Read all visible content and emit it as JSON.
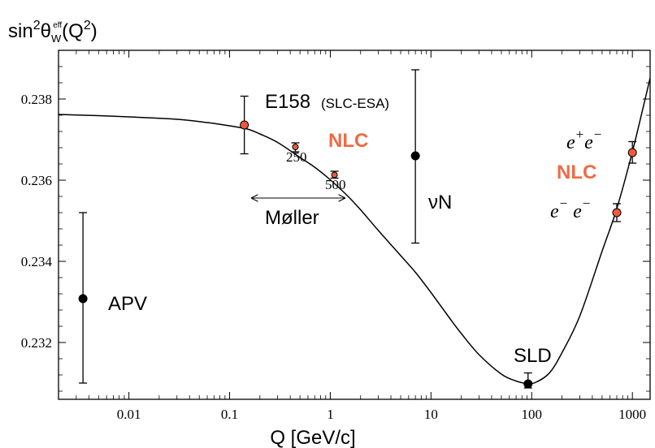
{
  "chart_data": {
    "type": "scatter",
    "title": "",
    "xlabel": "Q [GeV/c]",
    "ylabel": {
      "base": "sin",
      "sup1": "2",
      "theta": "θ",
      "sub": "W",
      "supeff": "eff",
      "rest": "(Q",
      "sup2": "2",
      "close": ")"
    },
    "x_scale": "log",
    "xlim": [
      0.002,
      1500
    ],
    "ylim": [
      0.2306,
      0.2392
    ],
    "x_ticks": [
      {
        "v": 0.01,
        "label": "0.01"
      },
      {
        "v": 0.1,
        "label": "0.1"
      },
      {
        "v": 1,
        "label": "1"
      },
      {
        "v": 10,
        "label": "10"
      },
      {
        "v": 100,
        "label": "100"
      },
      {
        "v": 1000,
        "label": "1000"
      }
    ],
    "y_ticks": [
      {
        "v": 0.232,
        "label": "0.232"
      },
      {
        "v": 0.234,
        "label": "0.234"
      },
      {
        "v": 0.236,
        "label": "0.236"
      },
      {
        "v": 0.238,
        "label": "0.238"
      }
    ],
    "curve": {
      "x": [
        0.002,
        0.005,
        0.01,
        0.03,
        0.06,
        0.1,
        0.15,
        0.2,
        0.3,
        0.5,
        0.7,
        1,
        1.5,
        2,
        3,
        5,
        7,
        10,
        15,
        20,
        30,
        50,
        70,
        90,
        110,
        150,
        200,
        300,
        500,
        700,
        1000,
        1500
      ],
      "y": [
        0.23762,
        0.23759,
        0.23756,
        0.2375,
        0.23742,
        0.23734,
        0.23726,
        0.23714,
        0.23693,
        0.23656,
        0.23632,
        0.23601,
        0.2356,
        0.23527,
        0.23476,
        0.23414,
        0.23373,
        0.23323,
        0.23263,
        0.23222,
        0.2317,
        0.23122,
        0.23105,
        0.23099,
        0.23102,
        0.23125,
        0.23175,
        0.23265,
        0.23425,
        0.2353,
        0.2367,
        0.23852
      ]
    },
    "points": [
      {
        "id": "apv",
        "x": 0.0035,
        "y": 0.23308,
        "yerr_low": 0.231,
        "yerr_high": 0.2352,
        "color": "#000000"
      },
      {
        "id": "e158",
        "x": 0.14,
        "y": 0.23736,
        "yerr_low": 0.23665,
        "yerr_high": 0.23807,
        "color": "#ee5a3a"
      },
      {
        "id": "moller250",
        "x": 0.45,
        "y": 0.23682,
        "yerr_low": 0.2367,
        "yerr_high": 0.23692,
        "color": "#ee5a3a"
      },
      {
        "id": "moller500",
        "x": 1.1,
        "y": 0.23613,
        "yerr_low": 0.23605,
        "yerr_high": 0.23622,
        "color": "#ee5a3a"
      },
      {
        "id": "nuN",
        "x": 7,
        "y": 0.2366,
        "yerr_low": 0.23445,
        "yerr_high": 0.23872,
        "color": "#000000"
      },
      {
        "id": "sld",
        "x": 92,
        "y": 0.23098,
        "yerr_low": 0.23088,
        "yerr_high": 0.23125,
        "color": "#000000"
      },
      {
        "id": "ee_minus",
        "x": 700,
        "y": 0.2352,
        "yerr_low": 0.23498,
        "yerr_high": 0.23542,
        "color": "#ee5a3a"
      },
      {
        "id": "ee_plus",
        "x": 1000,
        "y": 0.23668,
        "yerr_low": 0.23642,
        "yerr_high": 0.23695,
        "color": "#ee5a3a"
      }
    ],
    "annotations": {
      "apv": "APV",
      "e158": "E158",
      "slc_esa": "(SLC-ESA)",
      "nlc_left": "NLC",
      "moller250": "250",
      "moller500": "500",
      "moller": "Møller",
      "nuN": "νN",
      "sld": "SLD",
      "nlc_right": "NLC",
      "eplus_e": "e",
      "eplus_sup": "+",
      "eplus_e2": "e",
      "eplus_sup2": "−",
      "eminus_e": "e",
      "eminus_sup": "−",
      "eminus_e2": "e",
      "eminus_sup2": "−"
    },
    "moller_range": [
      0.16,
      1.2
    ],
    "grid": false,
    "legend": "none"
  }
}
